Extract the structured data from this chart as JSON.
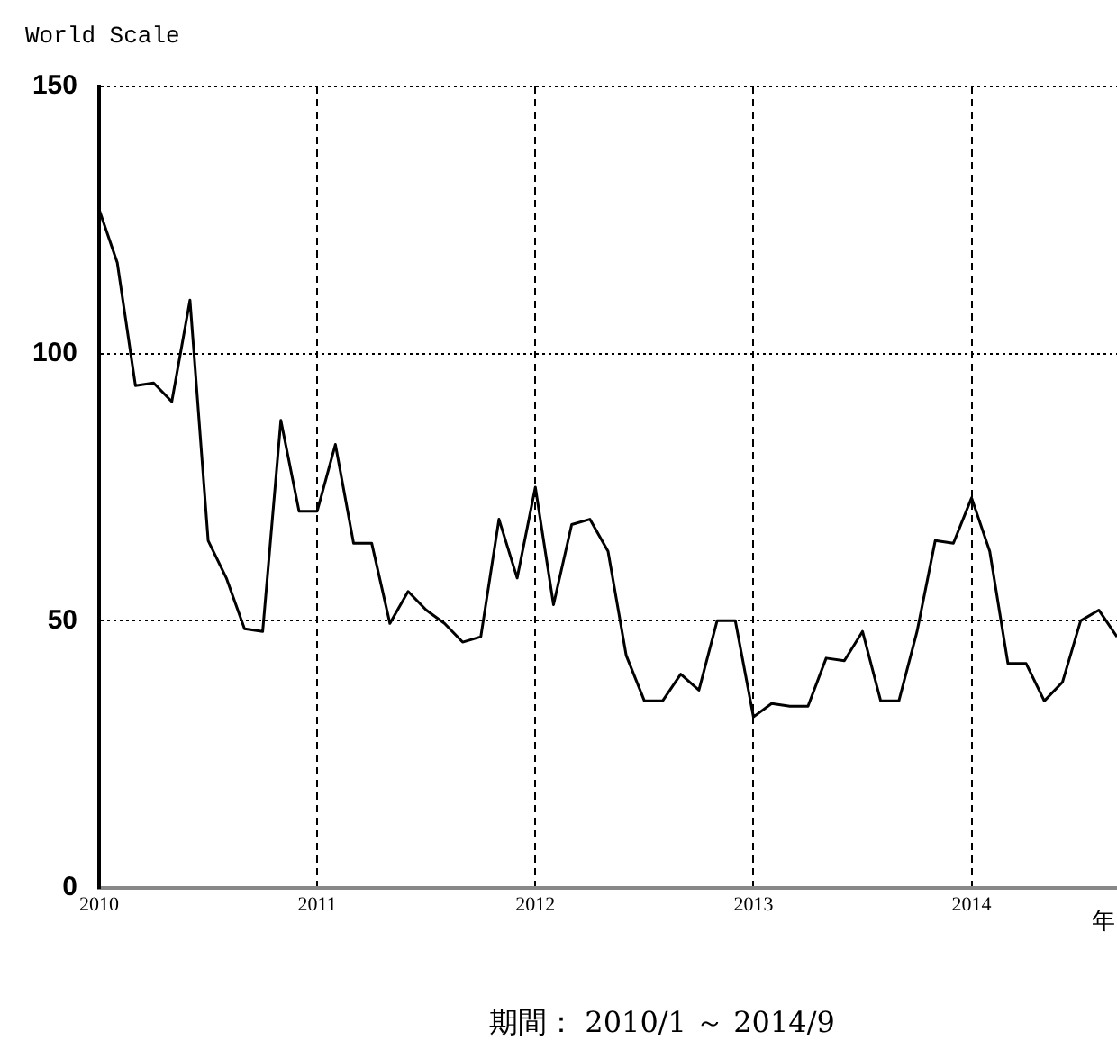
{
  "chart_data": {
    "type": "line",
    "ylabel": "World Scale",
    "xlabel": "年",
    "annotations": [
      "期間： 2010/1 ～ 2014/9"
    ],
    "x": [
      "2010-01",
      "2010-02",
      "2010-03",
      "2010-04",
      "2010-05",
      "2010-06",
      "2010-07",
      "2010-08",
      "2010-09",
      "2010-10",
      "2010-11",
      "2010-12",
      "2011-01",
      "2011-02",
      "2011-03",
      "2011-04",
      "2011-05",
      "2011-06",
      "2011-07",
      "2011-08",
      "2011-09",
      "2011-10",
      "2011-11",
      "2011-12",
      "2012-01",
      "2012-02",
      "2012-03",
      "2012-04",
      "2012-05",
      "2012-06",
      "2012-07",
      "2012-08",
      "2012-09",
      "2012-10",
      "2012-11",
      "2012-12",
      "2013-01",
      "2013-02",
      "2013-03",
      "2013-04",
      "2013-05",
      "2013-06",
      "2013-07",
      "2013-08",
      "2013-09",
      "2013-10",
      "2013-11",
      "2013-12",
      "2014-01",
      "2014-02",
      "2014-03",
      "2014-04",
      "2014-05",
      "2014-06",
      "2014-07",
      "2014-08",
      "2014-09"
    ],
    "series": [
      {
        "color": "#000000",
        "values": [
          127,
          117,
          94,
          94.5,
          91,
          110,
          65,
          58,
          48.5,
          48,
          87.5,
          70.5,
          70.5,
          83,
          64.5,
          64.5,
          49.5,
          55.5,
          52,
          49.5,
          46,
          47,
          69,
          58,
          75,
          53,
          68,
          69,
          63,
          43.5,
          35,
          35,
          40,
          37,
          50,
          50,
          32,
          34.5,
          34,
          34,
          43,
          42.5,
          48,
          35,
          35,
          48,
          65,
          64.5,
          73,
          63,
          42,
          42,
          35,
          38.5,
          50,
          52,
          47
        ]
      }
    ],
    "xlim": [
      "2010-01",
      "2014-09"
    ],
    "xticks": [
      "2010",
      "2011",
      "2012",
      "2013",
      "2014"
    ],
    "ylim": [
      0,
      150
    ],
    "yticks": [
      0,
      50,
      100,
      150
    ],
    "grid": true,
    "legend": false,
    "marker": "none",
    "line_style": "solid"
  }
}
